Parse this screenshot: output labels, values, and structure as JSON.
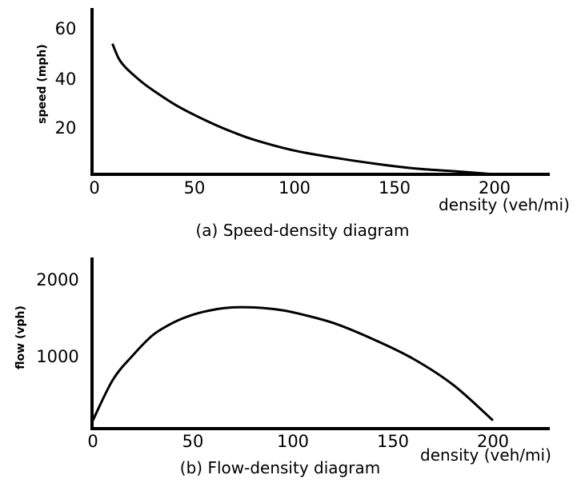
{
  "chart_data": [
    {
      "type": "line",
      "title": "(a) Speed-density diagram",
      "xlabel": "density (veh/mi)",
      "ylabel": "speed (mph)",
      "xlim": [
        0,
        220
      ],
      "ylim": [
        0,
        65
      ],
      "x_ticks": [
        0,
        50,
        100,
        150,
        200
      ],
      "y_ticks": [
        20,
        40,
        60
      ],
      "grid": false,
      "legend": "none",
      "series": [
        {
          "x": [
            9,
            12,
            15,
            20,
            25,
            30,
            40,
            50,
            60,
            70,
            80,
            100,
            120,
            140,
            160,
            180,
            200
          ],
          "values": [
            55,
            49,
            45.5,
            41.5,
            38,
            35,
            29.5,
            25,
            21,
            17.5,
            14.5,
            10,
            7,
            4.5,
            2.5,
            1.3,
            0
          ]
        }
      ]
    },
    {
      "type": "line",
      "title": "(b) Flow-density diagram",
      "xlabel": "density (veh/mi)",
      "ylabel": "flow (vph)",
      "xlim": [
        0,
        220
      ],
      "ylim": [
        0,
        2300
      ],
      "x_ticks": [
        0,
        50,
        100,
        150,
        200
      ],
      "y_ticks": [
        1000,
        2000
      ],
      "grid": false,
      "legend": "none",
      "series": [
        {
          "x": [
            0,
            10,
            20,
            30,
            40,
            50,
            60,
            70,
            80,
            90,
            100,
            120,
            140,
            160,
            180,
            200
          ],
          "values": [
            100,
            600,
            900,
            1150,
            1300,
            1400,
            1460,
            1490,
            1490,
            1470,
            1430,
            1300,
            1100,
            860,
            540,
            100
          ]
        }
      ]
    }
  ]
}
